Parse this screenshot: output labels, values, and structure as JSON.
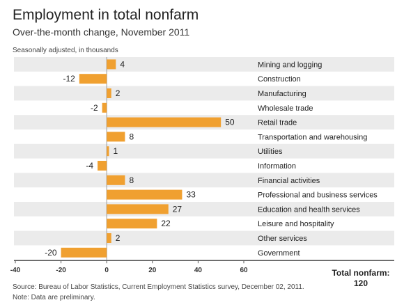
{
  "header": {
    "title": "Employment in total nonfarm",
    "subtitle": "Over-the-month change, November 2011",
    "units_note": "Seasonally adjusted, in thousands"
  },
  "footer": {
    "total_label": "Total nonfarm:",
    "total_value": "120",
    "source": "Source: Bureau of Labor Statistics, Current Employment Statistics survey, December 02, 2011.",
    "note": "Note: Data are preliminary."
  },
  "colors": {
    "bar": "#f0a030",
    "stripe": "#ebebeb",
    "axis": "#555555"
  },
  "chart_data": {
    "type": "bar",
    "orientation": "horizontal",
    "title": "Employment in total nonfarm",
    "subtitle": "Over-the-month change, November 2011",
    "categories": [
      "Mining and logging",
      "Construction",
      "Manufacturing",
      "Wholesale trade",
      "Retail trade",
      "Transportation and warehousing",
      "Utilities",
      "Information",
      "Financial activities",
      "Professional and business services",
      "Education and health services",
      "Leisure and hospitality",
      "Other services",
      "Government"
    ],
    "values": [
      4,
      -12,
      2,
      -2,
      50,
      8,
      1,
      -4,
      8,
      33,
      27,
      22,
      2,
      -20
    ],
    "xlim": [
      -40,
      60
    ],
    "xticks": [
      -40,
      -20,
      0,
      20,
      40,
      60
    ],
    "grid": false,
    "alternating_row_stripes": true
  }
}
